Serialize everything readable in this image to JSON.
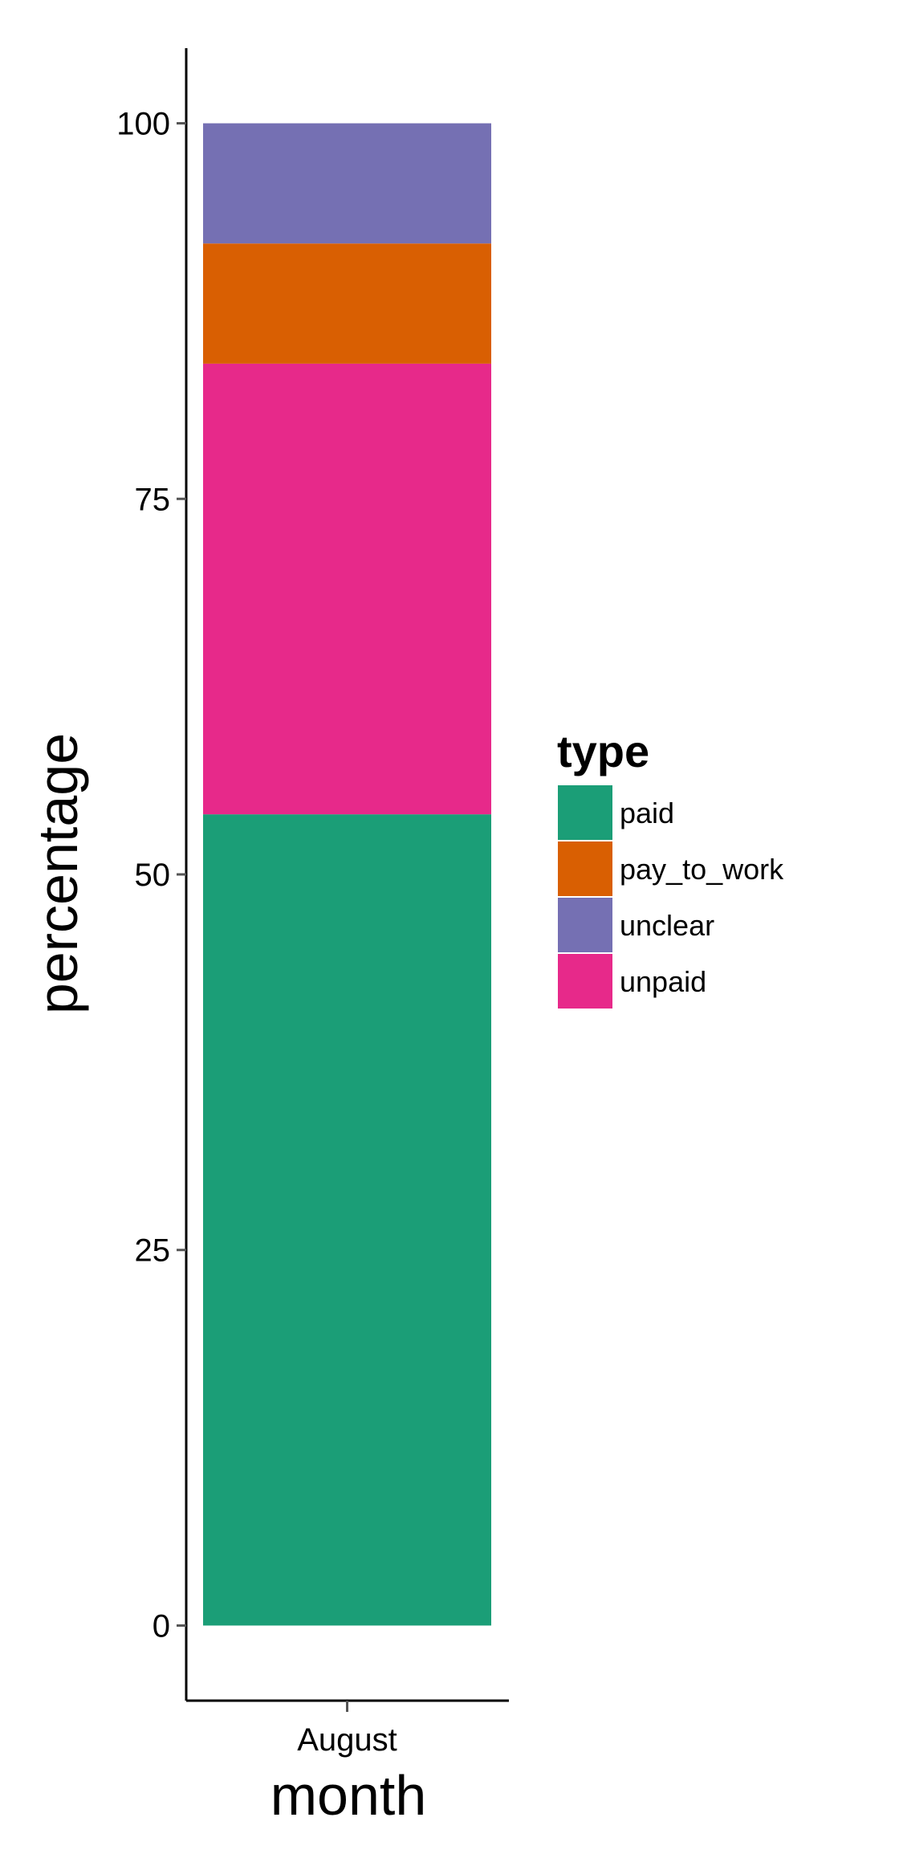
{
  "chart_data": {
    "type": "bar",
    "stacked": true,
    "categories": [
      "August"
    ],
    "series": [
      {
        "name": "paid",
        "values": [
          54
        ],
        "color": "#1b9e77"
      },
      {
        "name": "unpaid",
        "values": [
          30
        ],
        "color": "#e7298a"
      },
      {
        "name": "pay_to_work",
        "values": [
          8
        ],
        "color": "#d95f02"
      },
      {
        "name": "unclear",
        "values": [
          8
        ],
        "color": "#7570b3"
      }
    ],
    "xlabel": "month",
    "ylabel": "percentage",
    "ylim": [
      -5,
      105
    ],
    "yticks": [
      0,
      25,
      50,
      75,
      100
    ],
    "grid": false,
    "legend": {
      "title": "type",
      "position": "right",
      "entries": [
        {
          "label": "paid",
          "color": "#1b9e77"
        },
        {
          "label": "pay_to_work",
          "color": "#d95f02"
        },
        {
          "label": "unclear",
          "color": "#7570b3"
        },
        {
          "label": "unpaid",
          "color": "#e7298a"
        }
      ]
    }
  }
}
